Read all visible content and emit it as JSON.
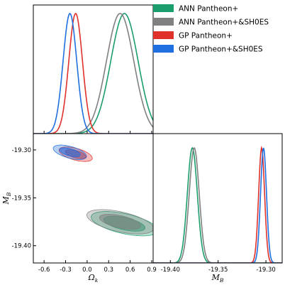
{
  "chart_data": {
    "type": "triangle",
    "parameters": [
      {
        "name": "omega_k",
        "label": "Ω",
        "label_sub": "k",
        "range": [
          -0.75,
          0.92
        ],
        "ticks": [
          -0.6,
          -0.3,
          0.0,
          0.3,
          0.6,
          0.9
        ],
        "tick_labels": [
          "-0.6",
          "-0.3",
          "0.0",
          "0.3",
          "0.6",
          "0.9"
        ]
      },
      {
        "name": "M_B",
        "label": "M",
        "label_sub": "B",
        "range": [
          -19.418,
          -19.283
        ],
        "ticks": [
          -19.4,
          -19.35,
          -19.3
        ],
        "tick_labels": [
          "-19.40",
          "-19.35",
          "-19.30"
        ]
      }
    ],
    "series": [
      {
        "name": "ANN Pantheon+",
        "color": "#1b9e6b",
        "omega_k": {
          "mean": 0.52,
          "sd": 0.19
        },
        "M_B": {
          "mean": -19.377,
          "sd": 0.0052
        },
        "corr": -0.55
      },
      {
        "name": "ANN Pantheon+&SH0ES",
        "color": "#808080",
        "omega_k": {
          "mean": 0.46,
          "sd": 0.19
        },
        "M_B": {
          "mean": -19.375,
          "sd": 0.0052
        },
        "corr": -0.55
      },
      {
        "name": "GP Pantheon+",
        "color": "#e0302a",
        "omega_k": {
          "mean": -0.16,
          "sd": 0.095
        },
        "M_B": {
          "mean": -19.3045,
          "sd": 0.0031
        },
        "corr": -0.55
      },
      {
        "name": "GP Pantheon+&SH0ES",
        "color": "#1f6fe0",
        "omega_k": {
          "mean": -0.24,
          "sd": 0.095
        },
        "M_B": {
          "mean": -19.3025,
          "sd": 0.0031
        },
        "corr": -0.55
      }
    ],
    "legend_position": "top-right",
    "grid": false
  }
}
